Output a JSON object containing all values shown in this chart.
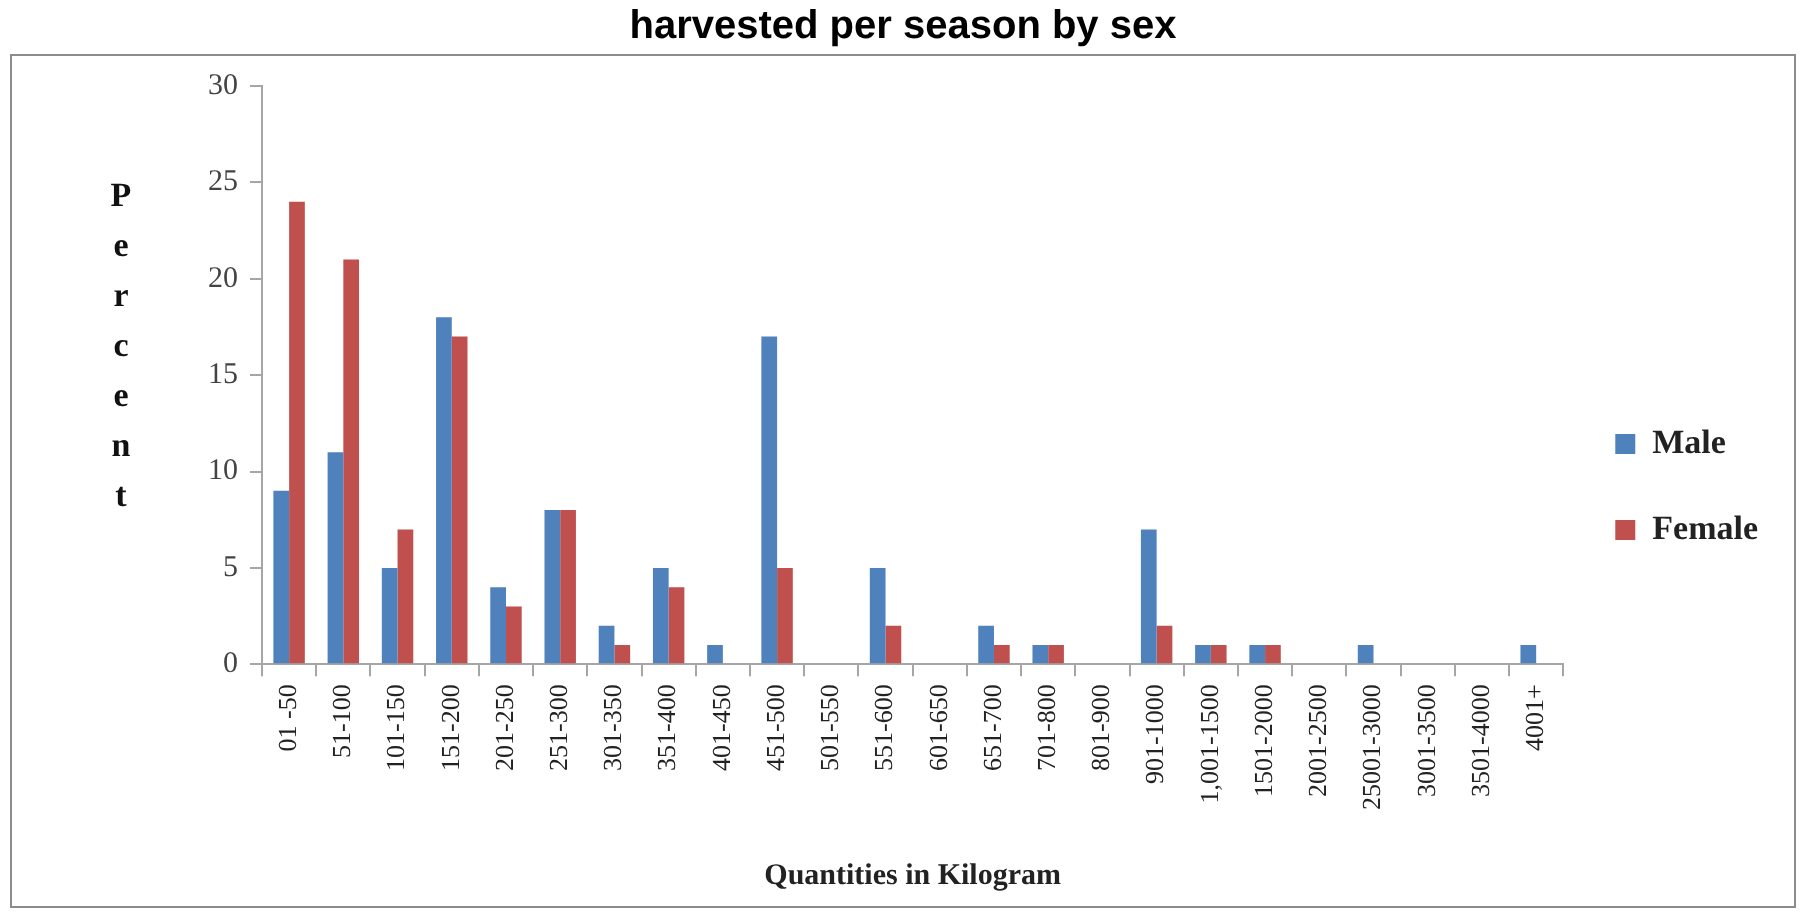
{
  "chart_data": {
    "type": "bar",
    "title": "harvested per season by sex",
    "xlabel": "Quantities in Kilogram",
    "ylabel": "Percent",
    "categories": [
      "01 -50",
      "51-100",
      "101-150",
      "151-200",
      "201-250",
      "251-300",
      "301-350",
      "351-400",
      "401-450",
      "451-500",
      "501-550",
      "551-600",
      "601-650",
      "651-700",
      "701-800",
      "801-900",
      "901-1000",
      "1,001-1500",
      "1501-2000",
      "2001-2500",
      "25001-3000",
      "3001-3500",
      "3501-4000",
      "4001+"
    ],
    "series": [
      {
        "name": "Male",
        "color": "#4f81bd",
        "values": [
          9,
          11,
          5,
          18,
          4,
          8,
          2,
          5,
          1,
          17,
          0,
          5,
          0,
          2,
          1,
          0,
          7,
          1,
          1,
          0,
          1,
          0,
          0,
          1
        ]
      },
      {
        "name": "Female",
        "color": "#c0504d",
        "values": [
          24,
          21,
          7,
          17,
          3,
          8,
          1,
          4,
          0,
          5,
          0,
          2,
          0,
          1,
          1,
          0,
          2,
          1,
          1,
          0,
          0,
          0,
          0,
          0
        ]
      }
    ],
    "ylim": [
      0,
      30
    ],
    "yticks": [
      0,
      5,
      10,
      15,
      20,
      25,
      30
    ],
    "legend": "right"
  }
}
